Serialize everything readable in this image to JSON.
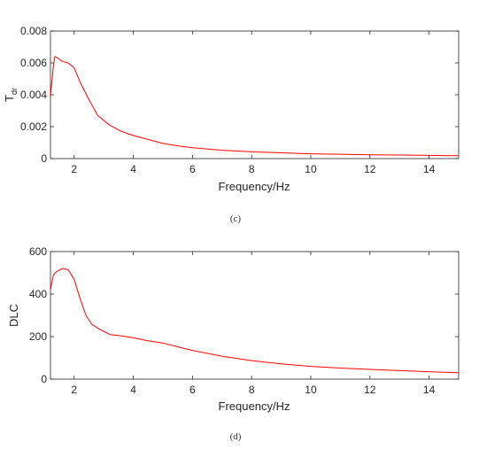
{
  "chart_data": [
    {
      "type": "line",
      "caption": "(c)",
      "xlabel": "Frequency/Hz",
      "ylabel": "T",
      "ylabel_sub": "dr",
      "xlim": [
        1.2,
        15
      ],
      "ylim": [
        0,
        0.008
      ],
      "xticks": [
        2,
        4,
        6,
        8,
        10,
        12,
        14
      ],
      "xtick_labels": [
        "2",
        "4",
        "6",
        "8",
        "10",
        "12",
        "14"
      ],
      "yticks": [
        0,
        0.002,
        0.004,
        0.006,
        0.008
      ],
      "ytick_labels": [
        "0",
        "0.002",
        "0.004",
        "0.006",
        "0.008"
      ],
      "color": "#ff0000",
      "grid": false,
      "series": [
        {
          "x": [
            1.2,
            1.3,
            1.35,
            1.45,
            1.6,
            1.8,
            2.0,
            2.2,
            2.5,
            2.8,
            3.2,
            3.6,
            4.0,
            4.5,
            5.0,
            5.5,
            6.0,
            7.0,
            8.0,
            9.0,
            10.0,
            11.0,
            12.0,
            13.0,
            14.0,
            15.0
          ],
          "y": [
            0.0039,
            0.0058,
            0.0064,
            0.0063,
            0.0061,
            0.006,
            0.0057,
            0.0048,
            0.0037,
            0.0027,
            0.0021,
            0.0017,
            0.00145,
            0.0012,
            0.00095,
            0.0008,
            0.00068,
            0.00052,
            0.00042,
            0.00036,
            0.0003,
            0.00027,
            0.00024,
            0.00022,
            0.0002,
            0.00018
          ]
        }
      ]
    },
    {
      "type": "line",
      "caption": "(d)",
      "xlabel": "Frequency/Hz",
      "ylabel": "DLC",
      "ylabel_sub": "",
      "xlim": [
        1.2,
        15
      ],
      "ylim": [
        0,
        600
      ],
      "xticks": [
        2,
        4,
        6,
        8,
        10,
        12,
        14
      ],
      "xtick_labels": [
        "2",
        "4",
        "6",
        "8",
        "10",
        "12",
        "14"
      ],
      "yticks": [
        0,
        200,
        400,
        600
      ],
      "ytick_labels": [
        "0",
        "200",
        "400",
        "600"
      ],
      "color": "#ff0000",
      "grid": false,
      "series": [
        {
          "x": [
            1.2,
            1.3,
            1.4,
            1.6,
            1.8,
            2.0,
            2.2,
            2.4,
            2.6,
            2.8,
            3.0,
            3.2,
            3.5,
            4.0,
            4.5,
            5.0,
            5.5,
            6.0,
            7.0,
            8.0,
            9.0,
            10.0,
            11.0,
            12.0,
            13.0,
            14.0,
            15.0
          ],
          "y": [
            420,
            490,
            505,
            520,
            515,
            470,
            380,
            300,
            258,
            240,
            225,
            210,
            205,
            195,
            180,
            170,
            152,
            135,
            108,
            87,
            72,
            60,
            52,
            46,
            40,
            35,
            30
          ]
        }
      ]
    }
  ]
}
